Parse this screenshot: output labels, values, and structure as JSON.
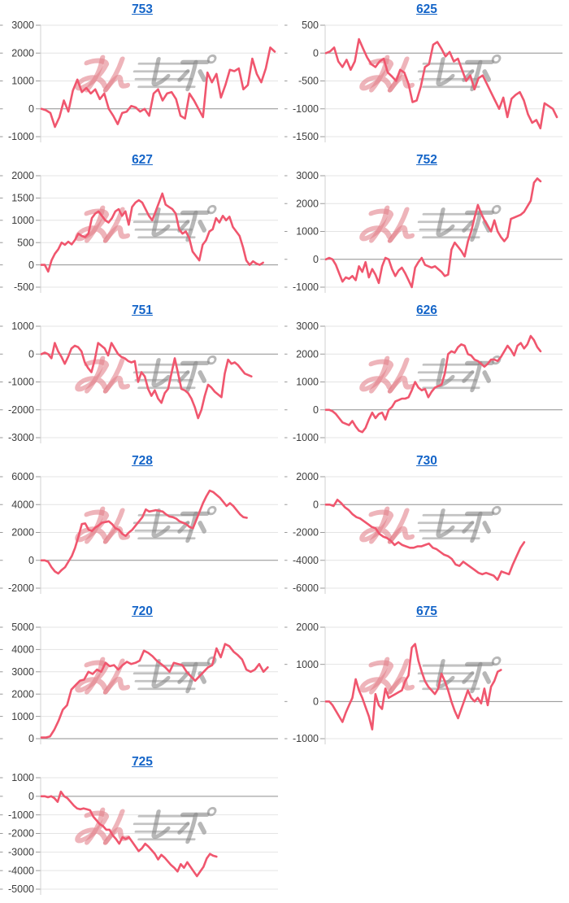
{
  "page": {
    "background": "#ffffff",
    "columns": 2
  },
  "watermark": {
    "text": "みんレポ",
    "text_pink": "みん",
    "text_gray": "レポ",
    "pink_color": "#e3828c",
    "gray_color": "#878787"
  },
  "styles": {
    "line_color": "#f0566e",
    "grid_color": "#e4e4e4",
    "zero_line_color": "#8f8f8f",
    "axis_label_color": "#3d3d3d",
    "axis_border_color": "#d0d0d0",
    "tick_color": "#9a9a9a",
    "title_link_color": "#1565c8"
  },
  "chart_data": [
    {
      "type": "line",
      "title": "753",
      "xlabel": "",
      "ylabel": "",
      "y_ticks": [
        3000,
        2000,
        1000,
        0,
        -1000
      ],
      "ylim": [
        -1000,
        3000
      ],
      "x_end_frac": 1.0,
      "values": [
        0,
        -50,
        -150,
        -650,
        -300,
        300,
        -100,
        650,
        1050,
        600,
        750,
        550,
        700,
        350,
        550,
        0,
        -250,
        -550,
        -150,
        -100,
        100,
        50,
        -100,
        0,
        -250,
        550,
        700,
        300,
        550,
        600,
        350,
        -250,
        -350,
        550,
        300,
        0,
        -300,
        1300,
        950,
        1250,
        400,
        850,
        1400,
        1350,
        1450,
        700,
        850,
        1800,
        1250,
        950,
        1450,
        2200,
        2050
      ]
    },
    {
      "type": "line",
      "title": "625",
      "xlabel": "",
      "ylabel": "",
      "y_ticks": [
        500,
        0,
        -500,
        -1000,
        -1500
      ],
      "ylim": [
        -1500,
        500
      ],
      "x_end_frac": 0.99,
      "values": [
        0,
        30,
        100,
        -150,
        -250,
        -120,
        -300,
        -150,
        250,
        80,
        -80,
        -200,
        -250,
        -150,
        -100,
        -350,
        -420,
        -500,
        -300,
        -350,
        -550,
        -880,
        -850,
        -600,
        -250,
        -200,
        150,
        200,
        80,
        -60,
        20,
        -150,
        -100,
        -300,
        -500,
        -400,
        -650,
        -450,
        -400,
        -550,
        -700,
        -850,
        -1000,
        -800,
        -1150,
        -820,
        -750,
        -700,
        -850,
        -1100,
        -1250,
        -1200,
        -1350,
        -900,
        -950,
        -1000,
        -1150
      ]
    },
    {
      "type": "line",
      "title": "627",
      "xlabel": "",
      "ylabel": "",
      "y_ticks": [
        2000,
        1500,
        1000,
        500,
        0,
        -500
      ],
      "ylim": [
        -500,
        2000
      ],
      "x_end_frac": 0.95,
      "values": [
        0,
        0,
        -150,
        100,
        250,
        350,
        500,
        450,
        520,
        460,
        560,
        700,
        650,
        620,
        700,
        1050,
        1150,
        1200,
        1100,
        1000,
        950,
        1050,
        1200,
        1250,
        1100,
        1200,
        900,
        1300,
        1400,
        1450,
        1400,
        1250,
        1100,
        1000,
        1200,
        1400,
        1600,
        1350,
        1300,
        1250,
        1150,
        800,
        700,
        750,
        600,
        300,
        200,
        100,
        450,
        550,
        750,
        800,
        1050,
        950,
        1100,
        1000,
        1080,
        850,
        750,
        650,
        400,
        100,
        0,
        80,
        30,
        0,
        50
      ]
    },
    {
      "type": "line",
      "title": "752",
      "xlabel": "",
      "ylabel": "",
      "y_ticks": [
        3000,
        2000,
        1000,
        0,
        -1000
      ],
      "ylim": [
        -1000,
        3000
      ],
      "x_end_frac": 0.92,
      "values": [
        0,
        50,
        0,
        -200,
        -500,
        -800,
        -650,
        -700,
        -600,
        -750,
        -250,
        -450,
        -100,
        -650,
        -350,
        -550,
        -850,
        -250,
        50,
        0,
        -350,
        -600,
        -400,
        -300,
        -500,
        -750,
        -1000,
        -300,
        -100,
        50,
        -200,
        -250,
        -300,
        -250,
        -350,
        -450,
        -600,
        -550,
        350,
        600,
        450,
        300,
        100,
        650,
        1000,
        1500,
        1950,
        1650,
        1400,
        1200,
        1000,
        1400,
        1000,
        800,
        650,
        800,
        1450,
        1500,
        1550,
        1600,
        1700,
        1900,
        2100,
        2750,
        2900,
        2800
      ]
    },
    {
      "type": "line",
      "title": "751",
      "xlabel": "",
      "ylabel": "",
      "y_ticks": [
        1000,
        0,
        -1000,
        -2000,
        -3000
      ],
      "ylim": [
        -3000,
        1000
      ],
      "x_end_frac": 0.9,
      "values": [
        0,
        50,
        0,
        -150,
        400,
        100,
        -100,
        -350,
        -100,
        200,
        300,
        250,
        100,
        -300,
        -500,
        -650,
        -200,
        400,
        300,
        200,
        -50,
        400,
        200,
        0,
        -100,
        -150,
        -250,
        -300,
        -250,
        -1000,
        -650,
        -800,
        -1250,
        -1500,
        -1300,
        -1600,
        -1750,
        -1400,
        -1250,
        -700,
        -150,
        -700,
        -1250,
        -1300,
        -1400,
        -1600,
        -1900,
        -2300,
        -2000,
        -1500,
        -1100,
        -1200,
        -1350,
        -1450,
        -1550,
        -700,
        -200,
        -350,
        -300,
        -400,
        -550,
        -700,
        -750,
        -800
      ]
    },
    {
      "type": "line",
      "title": "626",
      "xlabel": "",
      "ylabel": "",
      "y_ticks": [
        3000,
        2000,
        1000,
        0,
        -1000
      ],
      "ylim": [
        -1000,
        3000
      ],
      "x_end_frac": 0.92,
      "values": [
        0,
        0,
        -50,
        -150,
        -300,
        -450,
        -500,
        -550,
        -400,
        -600,
        -750,
        -800,
        -650,
        -350,
        -100,
        -300,
        -150,
        -100,
        -350,
        0,
        100,
        300,
        350,
        400,
        400,
        450,
        700,
        1000,
        800,
        700,
        750,
        450,
        650,
        800,
        850,
        900,
        1300,
        2000,
        2100,
        2050,
        2250,
        2350,
        2300,
        2000,
        1950,
        1800,
        1750,
        1650,
        1550,
        1650,
        1800,
        1800,
        1750,
        1900,
        2100,
        2300,
        2150,
        1950,
        2300,
        2400,
        2200,
        2350,
        2650,
        2500,
        2250,
        2100
      ]
    },
    {
      "type": "line",
      "title": "728",
      "xlabel": "",
      "ylabel": "",
      "y_ticks": [
        6000,
        4000,
        2000,
        0,
        -2000
      ],
      "ylim": [
        -2000,
        6000
      ],
      "x_end_frac": 0.88,
      "values": [
        0,
        0,
        -100,
        -500,
        -800,
        -950,
        -700,
        -500,
        -100,
        300,
        900,
        1700,
        2600,
        2650,
        2200,
        2100,
        2350,
        2500,
        2700,
        2750,
        2800,
        2600,
        2300,
        2200,
        1900,
        1750,
        2000,
        2200,
        2500,
        2800,
        3100,
        3650,
        3500,
        3550,
        3600,
        3550,
        3500,
        3300,
        3150,
        3100,
        3000,
        2800,
        2700,
        2600,
        2400,
        2300,
        2900,
        3500,
        4100,
        4600,
        5000,
        4900,
        4700,
        4500,
        4200,
        3900,
        4100,
        3900,
        3600,
        3300,
        3100,
        3050
      ]
    },
    {
      "type": "line",
      "title": "730",
      "xlabel": "",
      "ylabel": "",
      "y_ticks": [
        2000,
        0,
        -2000,
        -4000,
        -6000
      ],
      "ylim": [
        -6000,
        2000
      ],
      "x_end_frac": 0.85,
      "values": [
        0,
        0,
        -100,
        350,
        100,
        -200,
        -400,
        -700,
        -900,
        -1000,
        -1200,
        -1400,
        -1600,
        -1700,
        -2100,
        -2300,
        -2400,
        -2600,
        -2900,
        -2700,
        -2900,
        -3000,
        -3100,
        -3100,
        -3000,
        -3000,
        -2900,
        -2800,
        -3100,
        -3200,
        -3400,
        -3600,
        -3700,
        -3900,
        -4300,
        -4400,
        -4100,
        -4300,
        -4500,
        -4700,
        -4900,
        -5000,
        -4900,
        -5000,
        -5100,
        -5400,
        -4800,
        -4900,
        -5000,
        -4300,
        -3700,
        -3100,
        -2700
      ]
    },
    {
      "type": "line",
      "title": "720",
      "xlabel": "",
      "ylabel": "",
      "y_ticks": [
        5000,
        4000,
        3000,
        2000,
        1000,
        0
      ],
      "ylim": [
        0,
        5000
      ],
      "x_end_frac": 0.97,
      "values": [
        50,
        50,
        100,
        400,
        800,
        1300,
        1500,
        2200,
        2400,
        2600,
        2650,
        3000,
        2900,
        3100,
        3000,
        3400,
        3250,
        3300,
        3100,
        3300,
        3450,
        3350,
        3400,
        3500,
        3950,
        3850,
        3700,
        3500,
        3350,
        3200,
        3000,
        3400,
        3350,
        3300,
        3000,
        2800,
        2600,
        2800,
        3000,
        3200,
        3300,
        4050,
        3650,
        4250,
        4150,
        3900,
        3750,
        3550,
        3100,
        3000,
        3100,
        3350,
        3000,
        3200
      ]
    },
    {
      "type": "line",
      "title": "675",
      "xlabel": "",
      "ylabel": "",
      "y_ticks": [
        2000,
        1000,
        0,
        -1000
      ],
      "ylim": [
        -1000,
        2000
      ],
      "x_end_frac": 0.75,
      "values": [
        0,
        0,
        -100,
        -250,
        -400,
        -550,
        -300,
        -100,
        100,
        600,
        300,
        100,
        -150,
        -400,
        -750,
        200,
        -100,
        -200,
        350,
        100,
        150,
        200,
        250,
        300,
        550,
        700,
        1450,
        1550,
        1100,
        800,
        550,
        400,
        300,
        200,
        350,
        750,
        550,
        300,
        0,
        -250,
        -450,
        -200,
        50,
        300,
        100,
        0,
        100,
        -50,
        350,
        -100,
        400,
        550,
        800,
        850
      ]
    },
    {
      "type": "line",
      "title": "725",
      "xlabel": "",
      "ylabel": "",
      "y_ticks": [
        1000,
        0,
        -1000,
        -2000,
        -3000,
        -4000,
        -5000
      ],
      "ylim": [
        -5000,
        1000
      ],
      "x_end_frac": 0.75,
      "values": [
        0,
        0,
        -50,
        0,
        -100,
        -300,
        250,
        0,
        -100,
        -300,
        -500,
        -650,
        -700,
        -650,
        -700,
        -750,
        -1100,
        -1300,
        -1500,
        -1600,
        -1800,
        -1800,
        -2100,
        -2300,
        -2550,
        -2200,
        -2300,
        -2200,
        -2450,
        -2700,
        -2950,
        -2800,
        -2550,
        -2700,
        -2900,
        -3100,
        -3400,
        -3150,
        -3300,
        -3500,
        -3700,
        -3850,
        -4050,
        -3650,
        -3850,
        -3550,
        -3800,
        -4050,
        -4300,
        -4050,
        -3800,
        -3350,
        -3100,
        -3200,
        -3250
      ]
    }
  ]
}
